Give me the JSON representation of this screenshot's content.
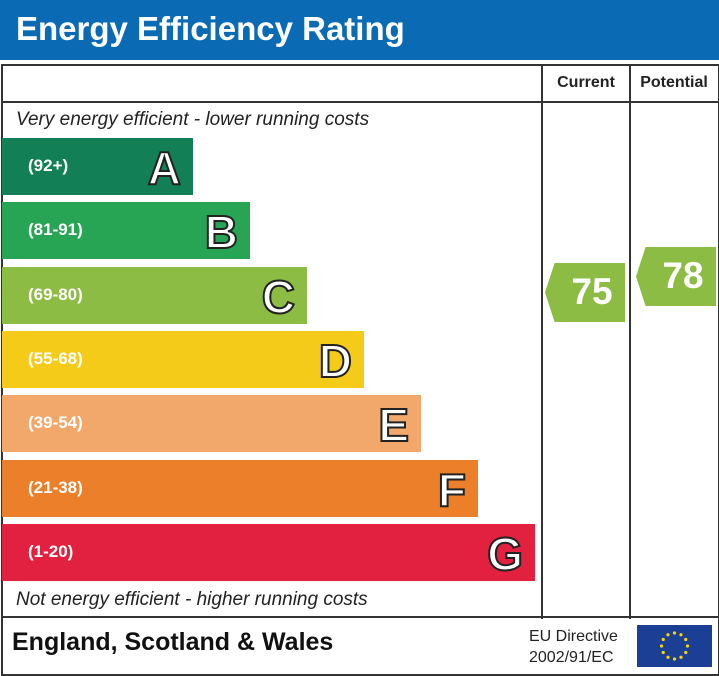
{
  "title": "Energy Efficiency Rating",
  "chart_data": {
    "type": "table",
    "columns": [
      "Current",
      "Potential"
    ],
    "top_note": "Very energy efficient - lower running costs",
    "bottom_note": "Not energy efficient - higher running costs",
    "bands": [
      {
        "letter": "A",
        "range": "(92+)",
        "color": "#127f57"
      },
      {
        "letter": "B",
        "range": "(81-91)",
        "color": "#28a455"
      },
      {
        "letter": "C",
        "range": "(69-80)",
        "color": "#8cbc43"
      },
      {
        "letter": "D",
        "range": "(55-68)",
        "color": "#f5cb1a"
      },
      {
        "letter": "E",
        "range": "(39-54)",
        "color": "#f2a86b"
      },
      {
        "letter": "F",
        "range": "(21-38)",
        "color": "#ec7f2a"
      },
      {
        "letter": "G",
        "range": "(1-20)",
        "color": "#e2203f"
      }
    ],
    "current": {
      "value": "75",
      "band": "C"
    },
    "potential": {
      "value": "78",
      "band": "C"
    }
  },
  "footer": {
    "region": "England, Scotland & Wales",
    "directive_line1": "EU Directive",
    "directive_line2": "2002/91/EC"
  }
}
